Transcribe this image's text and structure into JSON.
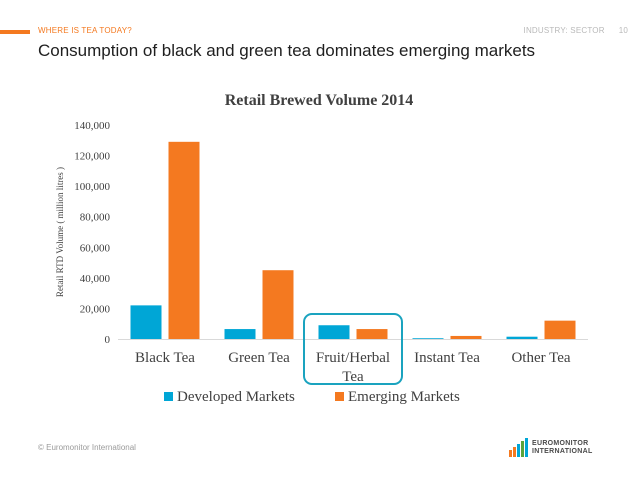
{
  "header": {
    "section": "WHERE IS TEA TODAY?",
    "right": "INDUSTRY: SECTOR",
    "page": "10"
  },
  "slide_title": "Consumption of black and green tea dominates emerging markets",
  "footer": {
    "copyright": "© Euromonitor International",
    "logo_line1": "EUROMONITOR",
    "logo_line2": "INTERNATIONAL"
  },
  "colors": {
    "accent": "#f47920",
    "developed": "#00a6d6",
    "emerging": "#f47920",
    "highlight": "#1aa3bf"
  },
  "chart_data": {
    "type": "bar",
    "title": "Retail Brewed Volume 2014",
    "ylabel": "Retail RTD Volume ( million litres )",
    "xlabel": "",
    "categories": [
      "Black Tea",
      "Green Tea",
      "Fruit/Herbal Tea",
      "Instant Tea",
      "Other Tea"
    ],
    "series": [
      {
        "name": "Developed Markets",
        "color": "#00a6d6",
        "values": [
          22000,
          6500,
          9000,
          500,
          1500
        ]
      },
      {
        "name": "Emerging Markets",
        "color": "#f47920",
        "values": [
          129000,
          45000,
          6500,
          2000,
          12000
        ]
      }
    ],
    "ylim": [
      0,
      140000
    ],
    "yticks": [
      "0",
      "20,000",
      "40,000",
      "60,000",
      "80,000",
      "100,000",
      "120,000",
      "140,000"
    ],
    "grid": false,
    "legend": "bottom",
    "highlighted_category": "Fruit/Herbal Tea"
  }
}
